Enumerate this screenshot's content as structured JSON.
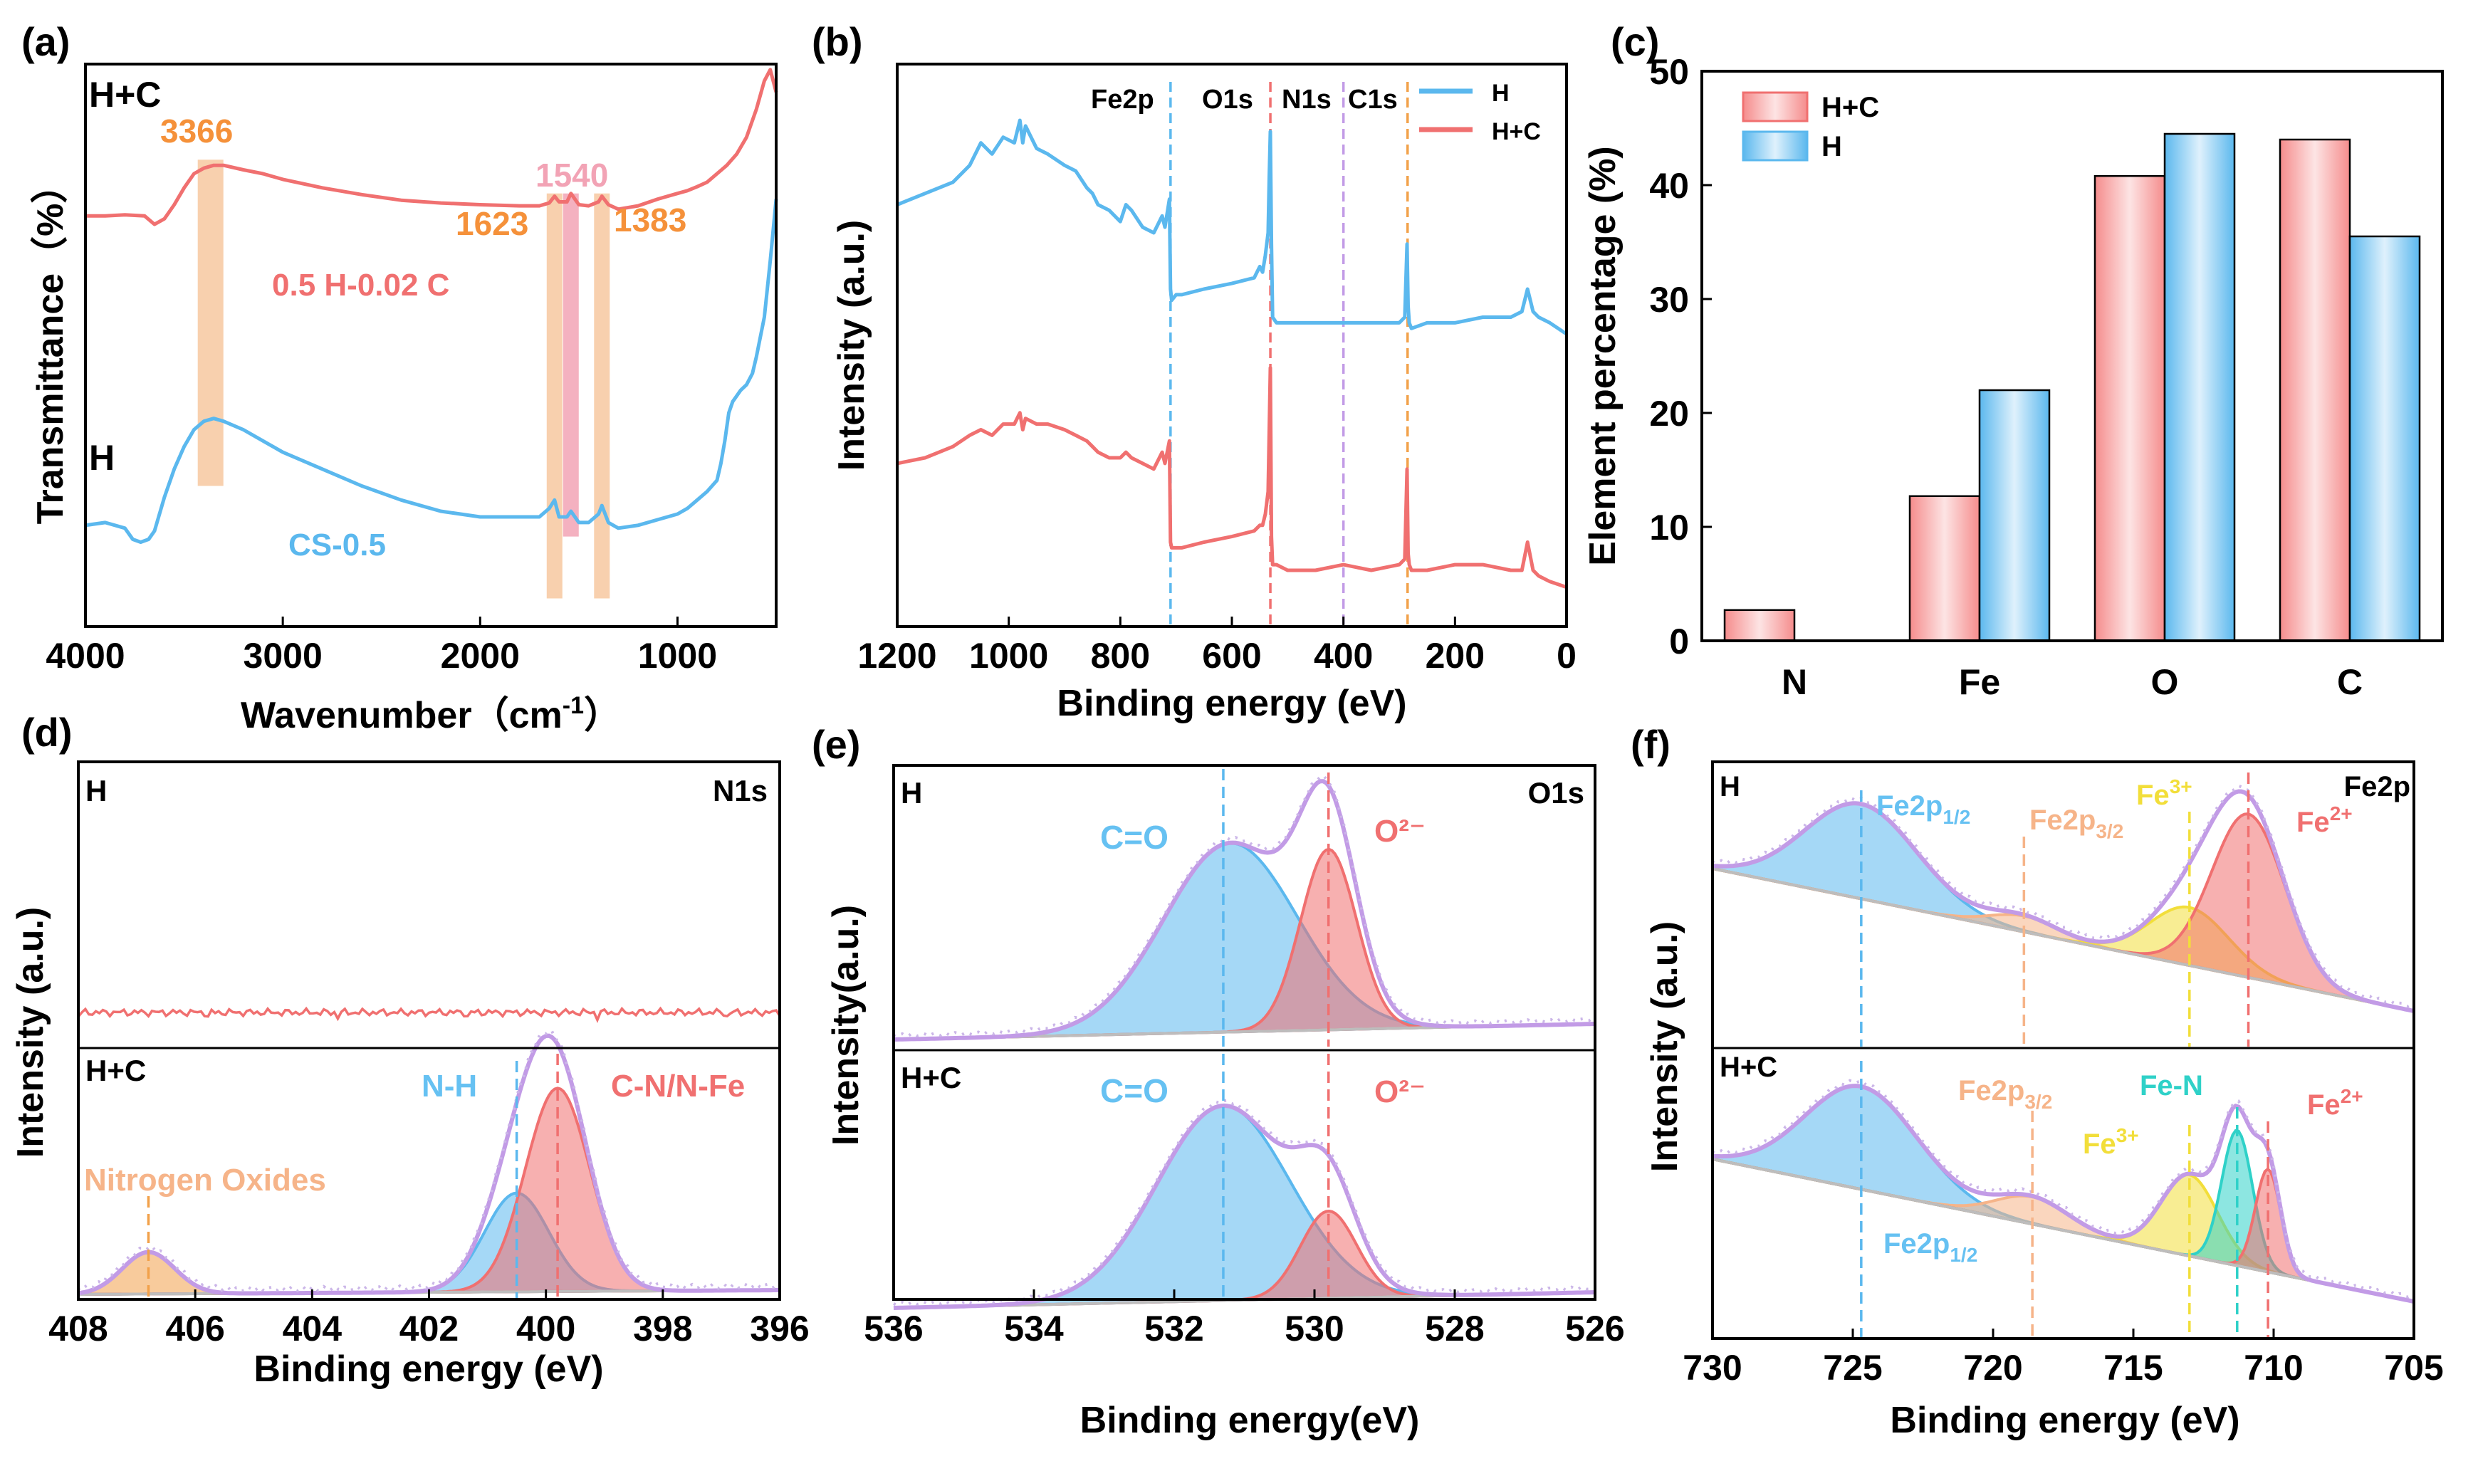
{
  "colors": {
    "red": "#f07070",
    "blue": "#5bb8ee",
    "orange": "#f2a14a",
    "purple": "#c29be6",
    "cyan": "#2fd1c8",
    "yellow": "#f2de3a",
    "peach": "#f6b489",
    "bg_band": "#f7c8a0",
    "pink_band": "#f2a3b5",
    "label_blue": "#66c1f2",
    "label_orange": "#f5913a"
  },
  "chart_data": [
    {
      "id": "a",
      "type": "line",
      "panel_label": "(a)",
      "xlabel": "Wavenumber（cm",
      "xlabel_sup": "-1",
      "xlabel_end": "）",
      "ylabel": "Transmittance（%）",
      "xlim": [
        4000,
        500
      ],
      "xticks": [
        "4000",
        "3000",
        "2000",
        "1000"
      ],
      "xtick_values": [
        4000,
        3000,
        2000,
        1000
      ],
      "series": [
        {
          "name": "H+C",
          "sample": "0.5 H-0.02 C",
          "color": "red",
          "x": [
            4000,
            3900,
            3800,
            3700,
            3650,
            3600,
            3550,
            3500,
            3450,
            3400,
            3350,
            3300,
            3200,
            3100,
            3000,
            2800,
            2600,
            2400,
            2200,
            2000,
            1800,
            1700,
            1650,
            1623,
            1600,
            1560,
            1540,
            1500,
            1450,
            1400,
            1383,
            1350,
            1300,
            1200,
            1100,
            1000,
            950,
            900,
            850,
            800,
            750,
            700,
            650,
            600,
            560,
            530,
            500
          ],
          "y": [
            73,
            73,
            73.2,
            73,
            71.5,
            72.5,
            75,
            78,
            80.5,
            81.5,
            82,
            82,
            81.2,
            80.5,
            79.5,
            78,
            76.8,
            75.8,
            75.3,
            75,
            74.8,
            74.8,
            75.3,
            76.5,
            75.5,
            75.5,
            77,
            75,
            74.8,
            75.5,
            76.5,
            75,
            74.2,
            74.8,
            76,
            77,
            77.5,
            78.2,
            79,
            80.5,
            82,
            84,
            87,
            92,
            97,
            99,
            95
          ]
        },
        {
          "name": "H",
          "sample": "CS-0.5",
          "color": "blue",
          "x": [
            4000,
            3900,
            3800,
            3760,
            3720,
            3680,
            3650,
            3600,
            3550,
            3500,
            3450,
            3400,
            3350,
            3300,
            3200,
            3100,
            3000,
            2800,
            2600,
            2400,
            2200,
            2000,
            1800,
            1700,
            1650,
            1623,
            1600,
            1560,
            1540,
            1500,
            1450,
            1400,
            1383,
            1350,
            1300,
            1200,
            1100,
            1000,
            950,
            900,
            850,
            800,
            780,
            760,
            740,
            720,
            700,
            680,
            650,
            620,
            600,
            560,
            530,
            500
          ],
          "y": [
            18,
            18.5,
            17.5,
            15.5,
            15,
            15.5,
            17,
            23,
            28,
            32,
            35,
            36.5,
            37,
            36.5,
            35,
            33,
            31,
            28,
            25,
            22.5,
            20.5,
            19.5,
            19.5,
            19.5,
            21,
            22.5,
            19.5,
            19.5,
            20.5,
            18.5,
            18.5,
            20,
            21.5,
            18.5,
            17.5,
            18,
            19,
            20,
            21,
            22.5,
            24,
            26,
            29,
            33,
            38,
            40,
            41,
            42,
            43,
            45,
            48,
            55,
            65,
            76
          ]
        }
      ],
      "series_labels": [
        "H+C",
        "H"
      ],
      "peak_labels": [
        {
          "text": "3366",
          "x": 3366,
          "band": true,
          "color": "orange"
        },
        {
          "text": "1623",
          "x": 1623,
          "band": true,
          "color": "orange"
        },
        {
          "text": "1540",
          "x": 1540,
          "band": true,
          "color": "pink"
        },
        {
          "text": "1383",
          "x": 1383,
          "band": true,
          "color": "orange"
        }
      ]
    },
    {
      "id": "b",
      "type": "line",
      "panel_label": "(b)",
      "xlabel": "Binding energy (eV)",
      "ylabel": "Intensity (a.u.)",
      "xlim": [
        1200,
        0
      ],
      "xticks": [
        "1200",
        "1000",
        "800",
        "600",
        "400",
        "200",
        "0"
      ],
      "xtick_values": [
        1200,
        1000,
        800,
        600,
        400,
        200,
        0
      ],
      "legend": [
        "H",
        "H+C"
      ],
      "markers": [
        {
          "text": "Fe2p",
          "x": 710,
          "color": "blue"
        },
        {
          "text": "O1s",
          "x": 531,
          "color": "red"
        },
        {
          "text": "N1s",
          "x": 400,
          "color": "purple"
        },
        {
          "text": "C1s",
          "x": 285,
          "color": "orange"
        }
      ],
      "series": [
        {
          "name": "H",
          "color": "blue",
          "x": [
            1200,
            1150,
            1100,
            1070,
            1050,
            1030,
            1010,
            990,
            980,
            975,
            970,
            950,
            930,
            900,
            880,
            860,
            850,
            840,
            820,
            800,
            790,
            780,
            760,
            740,
            725,
            720,
            712,
            710,
            708,
            700,
            690,
            650,
            600,
            560,
            550,
            545,
            540,
            535,
            533,
            531,
            529,
            527,
            520,
            500,
            450,
            400,
            350,
            300,
            290,
            286,
            284,
            282,
            278,
            250,
            200,
            150,
            100,
            80,
            70,
            60,
            50,
            30,
            0
          ],
          "y": [
            75,
            77,
            79,
            82,
            86,
            84,
            87,
            86,
            90,
            86,
            89,
            85,
            84,
            82,
            81,
            78,
            77,
            75,
            74,
            72,
            75,
            74,
            71,
            70,
            73,
            71,
            76,
            60,
            58,
            59,
            59,
            60,
            61,
            62,
            64,
            63,
            66,
            70,
            80,
            88,
            68,
            55,
            54,
            54,
            54,
            54,
            54,
            54,
            55,
            68,
            57,
            54,
            53,
            54,
            54,
            55,
            55,
            56,
            60,
            56,
            55,
            54,
            52
          ]
        },
        {
          "name": "H+C",
          "color": "red",
          "x": [
            1200,
            1150,
            1100,
            1070,
            1050,
            1030,
            1010,
            990,
            980,
            975,
            970,
            950,
            930,
            900,
            880,
            860,
            850,
            840,
            820,
            800,
            790,
            780,
            760,
            740,
            725,
            720,
            712,
            710,
            708,
            700,
            690,
            650,
            600,
            560,
            550,
            545,
            540,
            535,
            533,
            531,
            529,
            527,
            520,
            500,
            450,
            400,
            350,
            300,
            290,
            286,
            284,
            282,
            278,
            250,
            200,
            150,
            100,
            80,
            70,
            60,
            50,
            30,
            0
          ],
          "y": [
            29,
            30,
            32,
            34,
            35,
            34,
            36,
            36,
            38,
            35,
            37,
            36,
            36,
            35,
            34,
            33,
            32,
            31,
            30,
            30,
            31,
            30,
            29,
            28,
            31,
            29,
            33,
            15,
            14,
            14,
            14,
            15,
            16,
            17,
            18,
            18,
            20,
            24,
            35,
            46,
            16,
            11,
            11,
            10,
            10,
            11,
            10,
            11,
            12,
            28,
            13,
            11,
            10,
            10,
            11,
            11,
            10,
            10,
            15,
            10,
            9,
            8,
            7
          ]
        }
      ]
    },
    {
      "id": "c",
      "type": "bar",
      "panel_label": "(c)",
      "ylabel": "Element percentage (%)",
      "ylim": [
        0,
        50
      ],
      "yticks": [
        "0",
        "10",
        "20",
        "30",
        "40",
        "50"
      ],
      "categories": [
        "N",
        "Fe",
        "O",
        "C"
      ],
      "series": [
        {
          "name": "H+C",
          "color": "red",
          "values": [
            2.7,
            12.7,
            40.8,
            44.0
          ]
        },
        {
          "name": "H",
          "color": "blue",
          "values": [
            0,
            22.0,
            44.5,
            35.5
          ]
        }
      ]
    },
    {
      "id": "d",
      "type": "area",
      "panel_label": "(d)",
      "xlabel": "Binding energy (eV)",
      "ylabel": "Intensity (a.u.)",
      "xlim": [
        408,
        396
      ],
      "xticks": [
        "408",
        "406",
        "404",
        "402",
        "400",
        "398",
        "396"
      ],
      "xtick_values": [
        408,
        406,
        404,
        402,
        400,
        398,
        396
      ],
      "top_label": "H",
      "top_region": "N1s",
      "bottom_label": "H+C",
      "peaks": [
        {
          "label": "Nitrogen Oxides",
          "center": 406.8,
          "amp": 14,
          "width": 0.45,
          "color": "orange"
        },
        {
          "label": "N-H",
          "center": 400.5,
          "amp": 33,
          "width": 0.55,
          "color": "blue"
        },
        {
          "label": "C-N/N-Fe",
          "center": 399.8,
          "amp": 68,
          "width": 0.55,
          "color": "red"
        }
      ]
    },
    {
      "id": "e",
      "type": "area",
      "panel_label": "(e)",
      "xlabel": "Binding energy(eV)",
      "ylabel": "Intensity(a.u.)",
      "xlim": [
        536,
        526
      ],
      "xticks": [
        "536",
        "534",
        "532",
        "530",
        "528",
        "526"
      ],
      "xtick_values": [
        536,
        534,
        532,
        530,
        528,
        526
      ],
      "top_label": "H",
      "top_region": "O1s",
      "bottom_label": "H+C",
      "top_peaks": [
        {
          "label": "C=O",
          "center": 531.2,
          "amp": 68,
          "width": 0.95,
          "color": "blue"
        },
        {
          "label": "O²⁻",
          "center": 529.8,
          "amp": 65,
          "width": 0.4,
          "color": "red"
        }
      ],
      "bottom_peaks": [
        {
          "label": "C=O",
          "center": 531.3,
          "amp": 76,
          "width": 0.95,
          "color": "blue"
        },
        {
          "label": "O²⁻",
          "center": 529.8,
          "amp": 34,
          "width": 0.4,
          "color": "red"
        }
      ]
    },
    {
      "id": "f",
      "type": "area",
      "panel_label": "(f)",
      "xlabel": "Binding energy (eV)",
      "ylabel": "Intensity (a.u.)",
      "xlim": [
        730,
        705
      ],
      "xticks": [
        "730",
        "725",
        "720",
        "715",
        "710",
        "705"
      ],
      "xtick_values": [
        730,
        725,
        720,
        715,
        710,
        705
      ],
      "top_label": "H",
      "top_region": "Fe2p",
      "bottom_label": "H+C",
      "top_peaks": [
        {
          "label": "Fe2p1/2",
          "center": 724.7,
          "amp": 36,
          "width": 2.0,
          "color": "blue"
        },
        {
          "label": "Fe2p3/2",
          "center": 718.9,
          "amp": 6,
          "width": 1.2,
          "color": "peach"
        },
        {
          "label": "Fe3+",
          "center": 713.0,
          "amp": 22,
          "width": 1.4,
          "color": "yellow"
        },
        {
          "label": "Fe2+",
          "center": 710.9,
          "amp": 62,
          "width": 1.3,
          "color": "red"
        }
      ],
      "bottom_peaks": [
        {
          "label": "Fe2p1/2",
          "center": 724.7,
          "amp": 38,
          "width": 2.0,
          "color": "blue"
        },
        {
          "label": "Fe2p3/2",
          "center": 718.6,
          "amp": 10,
          "width": 1.3,
          "color": "peach"
        },
        {
          "label": "Fe3+",
          "center": 713.0,
          "amp": 30,
          "width": 1.0,
          "color": "yellow"
        },
        {
          "label": "Fe-N",
          "center": 711.3,
          "amp": 50,
          "width": 0.55,
          "color": "cyan"
        },
        {
          "label": "Fe2+",
          "center": 710.2,
          "amp": 38,
          "width": 0.45,
          "color": "red"
        }
      ],
      "label_parts": {
        "fe2p12_main": "Fe2p",
        "fe2p12_sub": "1/2",
        "fe2p32_main": "Fe2p",
        "fe2p32_sub": "3/2",
        "fe3_main": "Fe",
        "fe3_sup": "3+",
        "fe2_main": "Fe",
        "fe2_sup": "2+",
        "fen": "Fe-N"
      }
    }
  ]
}
